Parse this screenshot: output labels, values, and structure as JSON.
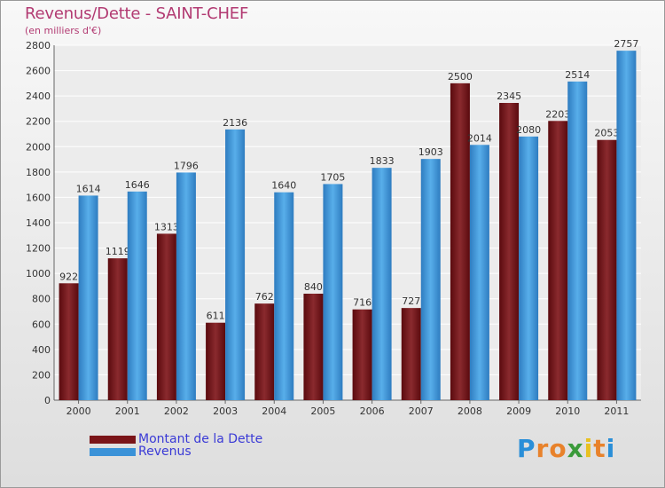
{
  "title": "Revenus/Dette - SAINT-CHEF",
  "subtitle": "(en milliers d'€)",
  "logo": {
    "letters": [
      "P",
      "r",
      "o",
      "x",
      "i",
      "t",
      "i"
    ],
    "colors": [
      "#2a8fd8",
      "#e8822b",
      "#e8822b",
      "#3a9a3a",
      "#e8c020",
      "#e8822b",
      "#2a8fd8"
    ]
  },
  "colors": {
    "dette": "#7a1418",
    "revenus": "#3a92d8",
    "title": "#b23a72",
    "legend_text": "#3a3ad6"
  },
  "legend": [
    {
      "label": "Montant de la Dette"
    },
    {
      "label": "Revenus"
    }
  ],
  "chart_data": {
    "type": "bar",
    "categories": [
      "2000",
      "2001",
      "2002",
      "2003",
      "2004",
      "2005",
      "2006",
      "2007",
      "2008",
      "2009",
      "2010",
      "2011"
    ],
    "series": [
      {
        "name": "Montant de la Dette",
        "values": [
          922,
          1119,
          1313,
          611,
          762,
          840,
          716,
          727,
          2500,
          2345,
          2203,
          2053
        ]
      },
      {
        "name": "Revenus",
        "values": [
          1614,
          1646,
          1796,
          2136,
          1640,
          1705,
          1833,
          1903,
          2014,
          2080,
          2514,
          2757
        ]
      }
    ],
    "yticks": [
      0,
      200,
      400,
      600,
      800,
      1000,
      1200,
      1400,
      1600,
      1800,
      2000,
      2200,
      2400,
      2600,
      2800
    ],
    "ylim": [
      0,
      2800
    ],
    "grid": true,
    "legend_position": "bottom-left"
  }
}
